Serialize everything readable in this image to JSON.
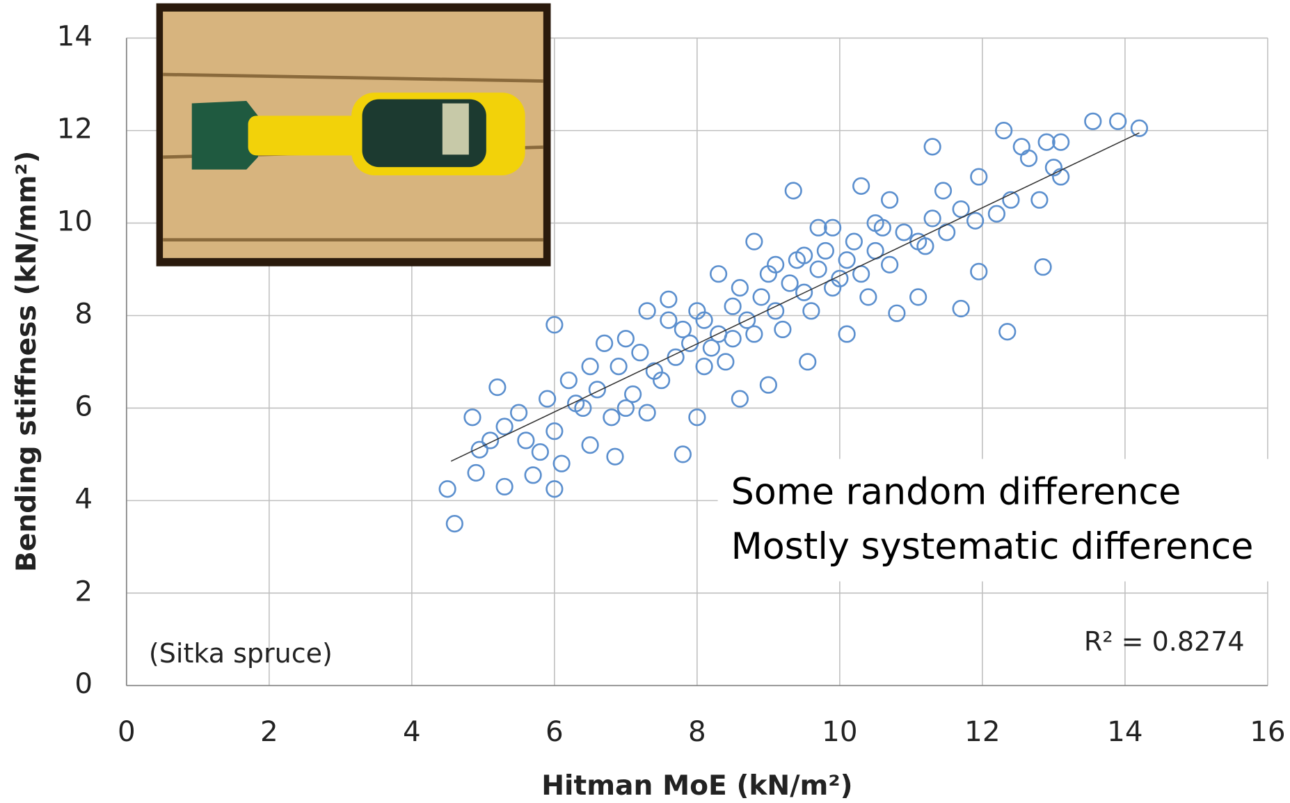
{
  "chart_data": {
    "type": "scatter",
    "xlabel": "Hitman MoE (kN/m²)",
    "ylabel": "Bending stiffness (kN/mm²)",
    "annotations": [
      "Some random difference",
      "Mostly systematic difference",
      "R² = 0.8274",
      "(Sitka spruce)"
    ],
    "xlim": [
      0,
      16
    ],
    "xticks": [
      0,
      2,
      4,
      6,
      8,
      10,
      12,
      14,
      16
    ],
    "ylim": [
      0,
      14
    ],
    "yticks": [
      0,
      2,
      4,
      6,
      8,
      10,
      12,
      14
    ],
    "grid": true,
    "trendline": {
      "x": [
        4.55,
        14.2
      ],
      "y": [
        4.85,
        11.95
      ],
      "color": "#333333"
    },
    "series": [
      {
        "color": "#5b8fce",
        "x": [
          4.6,
          4.5,
          5.3,
          6,
          5.2,
          6,
          6.85,
          7.8,
          8,
          9.35,
          11.3,
          12.3,
          13.55,
          13.9,
          14.2,
          12.85,
          12.35,
          11.7,
          11.95,
          10.1,
          10.3,
          9.55,
          9,
          8.6,
          5.7,
          4.9,
          4.85,
          13.1,
          13,
          12.9,
          13.1,
          12.55,
          12.65,
          12.8,
          12.4,
          12.2,
          11.9,
          11.45,
          11.95,
          10.5,
          10.7,
          10.8,
          11.1,
          11.2,
          9.7,
          9.5,
          8.8,
          8.3,
          7.3,
          7.6,
          7,
          6.7,
          6.5,
          6.2,
          5.9,
          5.5,
          5.1,
          4.95,
          5.3,
          5.8,
          6.1,
          6.5,
          6.8,
          7.1,
          7.3,
          7.5,
          7.7,
          7.9,
          8.1,
          8.3,
          8.5,
          8.7,
          8.9,
          9.1,
          9.3,
          9.5,
          9.7,
          9.9,
          10.1,
          10.3,
          10.5,
          10.7,
          10.9,
          11.1,
          11.3,
          11.5,
          11.7,
          6.3,
          6.6,
          6.9,
          7.2,
          7.4,
          7.8,
          8,
          8.2,
          8.4,
          8.6,
          8.8,
          9,
          9.2,
          9.4,
          9.6,
          9.8,
          10,
          10.2,
          10.4,
          10.6,
          6,
          5.6,
          6.4,
          7,
          7.6,
          8.1,
          8.5,
          9.1,
          9.9
        ],
        "values": [
          3.5,
          4.25,
          4.3,
          4.25,
          6.45,
          7.8,
          4.95,
          5,
          5.8,
          10.7,
          11.65,
          12,
          12.2,
          12.2,
          12.05,
          9.05,
          7.65,
          8.15,
          8.95,
          7.6,
          10.8,
          7,
          6.5,
          6.2,
          4.55,
          4.6,
          5.8,
          11,
          11.2,
          11.75,
          11.75,
          11.65,
          11.4,
          10.5,
          10.5,
          10.2,
          10.05,
          10.7,
          11,
          10,
          10.5,
          8.05,
          8.4,
          9.5,
          9.9,
          9.3,
          9.6,
          8.9,
          8.1,
          8.35,
          7.5,
          7.4,
          6.9,
          6.6,
          6.2,
          5.9,
          5.3,
          5.1,
          5.6,
          5.05,
          4.8,
          5.2,
          5.8,
          6.3,
          5.9,
          6.6,
          7.1,
          7.4,
          7.9,
          7.6,
          8.2,
          7.9,
          8.4,
          8.1,
          8.7,
          8.5,
          9,
          8.6,
          9.2,
          8.9,
          9.4,
          9.1,
          9.8,
          9.6,
          10.1,
          9.8,
          10.3,
          6.1,
          6.4,
          6.9,
          7.2,
          6.8,
          7.7,
          8.1,
          7.3,
          7,
          8.6,
          7.6,
          8.9,
          7.7,
          9.2,
          8.1,
          9.4,
          8.8,
          9.6,
          8.4,
          9.9,
          5.5,
          5.3,
          6,
          6,
          7.9,
          6.9,
          7.5,
          9.1,
          9.9
        ]
      }
    ]
  }
}
